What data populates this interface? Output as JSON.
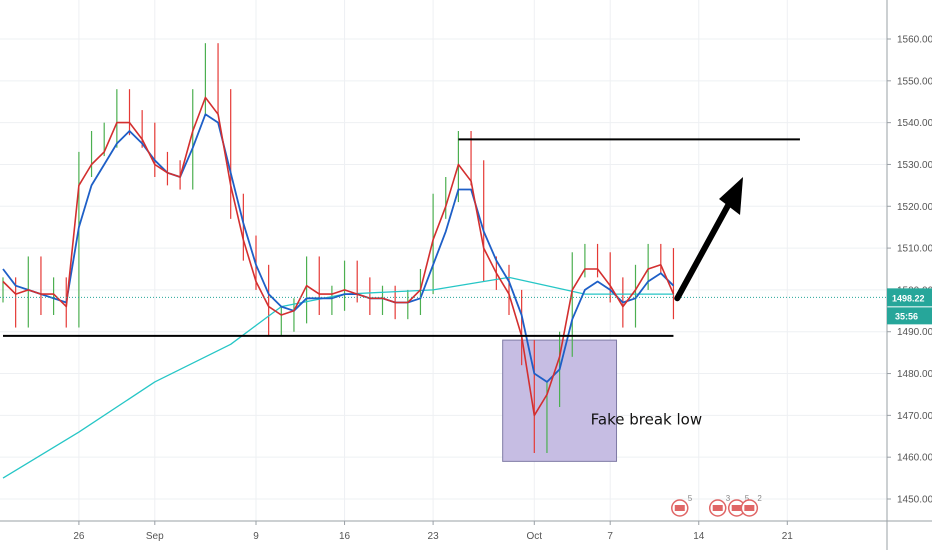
{
  "chart_data": {
    "type": "line",
    "y_scale": {
      "min": 1443,
      "max": 1565
    },
    "y_ticks": [
      1450,
      1460,
      1470,
      1480,
      1490,
      1500,
      1510,
      1520,
      1530,
      1540,
      1550,
      1560
    ],
    "y_tick_labels": [
      "1450.00",
      "1460.00",
      "1470.00",
      "1480.00",
      "1490.00",
      "1500.00",
      "1510.00",
      "1520.00",
      "1530.00",
      "1540.00",
      "1550.00",
      "1560.00"
    ],
    "x_ticks": [
      {
        "label": "26",
        "day": 6
      },
      {
        "label": "Sep",
        "day": 12
      },
      {
        "label": "9",
        "day": 20
      },
      {
        "label": "16",
        "day": 27
      },
      {
        "label": "23",
        "day": 34
      },
      {
        "label": "Oct",
        "day": 42
      },
      {
        "label": "7",
        "day": 48
      },
      {
        "label": "14",
        "day": 55
      },
      {
        "label": "21",
        "day": 62
      }
    ],
    "price_series": [
      [
        0,
        1500
      ],
      [
        1,
        1494
      ],
      [
        2,
        1505
      ],
      [
        3,
        1497
      ],
      [
        4,
        1500
      ],
      [
        5,
        1494
      ],
      [
        6,
        1530
      ],
      [
        7,
        1535
      ],
      [
        8,
        1537
      ],
      [
        9,
        1545
      ],
      [
        10,
        1540
      ],
      [
        11,
        1537
      ],
      [
        12,
        1530
      ],
      [
        13,
        1528
      ],
      [
        14,
        1527
      ],
      [
        15,
        1545
      ],
      [
        16,
        1556
      ],
      [
        17,
        1545
      ],
      [
        18,
        1520
      ],
      [
        19,
        1510
      ],
      [
        20,
        1503
      ],
      [
        21,
        1492
      ],
      [
        22,
        1493
      ],
      [
        23,
        1495
      ],
      [
        24,
        1505
      ],
      [
        25,
        1497
      ],
      [
        26,
        1498
      ],
      [
        27,
        1504
      ],
      [
        28,
        1500
      ],
      [
        29,
        1497
      ],
      [
        30,
        1498
      ],
      [
        31,
        1496
      ],
      [
        32,
        1497
      ],
      [
        33,
        1502
      ],
      [
        34,
        1520
      ],
      [
        35,
        1524
      ],
      [
        36,
        1535
      ],
      [
        37,
        1528
      ],
      [
        38,
        1505
      ],
      [
        39,
        1503
      ],
      [
        40,
        1497
      ],
      [
        41,
        1485
      ],
      [
        42,
        1464
      ],
      [
        43,
        1475
      ],
      [
        44,
        1487
      ],
      [
        45,
        1506
      ],
      [
        46,
        1508
      ],
      [
        47,
        1506
      ],
      [
        48,
        1500
      ],
      [
        49,
        1494
      ],
      [
        50,
        1503
      ],
      [
        51,
        1508
      ],
      [
        52,
        1507
      ],
      [
        53,
        1496
      ]
    ],
    "ema_fast": [
      [
        0,
        1502
      ],
      [
        1,
        1499
      ],
      [
        2,
        1500
      ],
      [
        3,
        1499
      ],
      [
        4,
        1499
      ],
      [
        5,
        1496
      ],
      [
        6,
        1525
      ],
      [
        7,
        1530
      ],
      [
        8,
        1533
      ],
      [
        9,
        1540
      ],
      [
        10,
        1540
      ],
      [
        11,
        1536
      ],
      [
        12,
        1530
      ],
      [
        13,
        1528
      ],
      [
        14,
        1527
      ],
      [
        15,
        1538
      ],
      [
        16,
        1546
      ],
      [
        17,
        1542
      ],
      [
        18,
        1525
      ],
      [
        19,
        1512
      ],
      [
        20,
        1502
      ],
      [
        21,
        1496
      ],
      [
        22,
        1494
      ],
      [
        23,
        1495
      ],
      [
        24,
        1501
      ],
      [
        25,
        1499
      ],
      [
        26,
        1499
      ],
      [
        27,
        1500
      ],
      [
        28,
        1499
      ],
      [
        29,
        1498
      ],
      [
        30,
        1498
      ],
      [
        31,
        1497
      ],
      [
        32,
        1497
      ],
      [
        33,
        1500
      ],
      [
        34,
        1512
      ],
      [
        35,
        1520
      ],
      [
        36,
        1530
      ],
      [
        37,
        1526
      ],
      [
        38,
        1510
      ],
      [
        39,
        1504
      ],
      [
        40,
        1499
      ],
      [
        41,
        1489
      ],
      [
        42,
        1470
      ],
      [
        43,
        1475
      ],
      [
        44,
        1484
      ],
      [
        45,
        1500
      ],
      [
        46,
        1505
      ],
      [
        47,
        1505
      ],
      [
        48,
        1501
      ],
      [
        49,
        1496
      ],
      [
        50,
        1500
      ],
      [
        51,
        1505
      ],
      [
        52,
        1506
      ],
      [
        53,
        1499
      ]
    ],
    "ema_mid": [
      [
        0,
        1505
      ],
      [
        1,
        1501
      ],
      [
        2,
        1500
      ],
      [
        3,
        1499
      ],
      [
        4,
        1498
      ],
      [
        5,
        1497
      ],
      [
        6,
        1515
      ],
      [
        7,
        1525
      ],
      [
        8,
        1530
      ],
      [
        9,
        1535
      ],
      [
        10,
        1538
      ],
      [
        11,
        1535
      ],
      [
        12,
        1531
      ],
      [
        13,
        1528
      ],
      [
        14,
        1527
      ],
      [
        15,
        1534
      ],
      [
        16,
        1542
      ],
      [
        17,
        1540
      ],
      [
        18,
        1528
      ],
      [
        19,
        1516
      ],
      [
        20,
        1506
      ],
      [
        21,
        1499
      ],
      [
        22,
        1496
      ],
      [
        23,
        1495
      ],
      [
        24,
        1498
      ],
      [
        25,
        1498
      ],
      [
        26,
        1498
      ],
      [
        27,
        1499
      ],
      [
        28,
        1499
      ],
      [
        29,
        1498
      ],
      [
        30,
        1498
      ],
      [
        31,
        1497
      ],
      [
        32,
        1497
      ],
      [
        33,
        1498
      ],
      [
        34,
        1506
      ],
      [
        35,
        1514
      ],
      [
        36,
        1524
      ],
      [
        37,
        1524
      ],
      [
        38,
        1514
      ],
      [
        39,
        1507
      ],
      [
        40,
        1502
      ],
      [
        41,
        1494
      ],
      [
        42,
        1480
      ],
      [
        43,
        1478
      ],
      [
        44,
        1481
      ],
      [
        45,
        1493
      ],
      [
        46,
        1500
      ],
      [
        47,
        1502
      ],
      [
        48,
        1500
      ],
      [
        49,
        1497
      ],
      [
        50,
        1498
      ],
      [
        51,
        1502
      ],
      [
        52,
        1504
      ],
      [
        53,
        1501
      ]
    ],
    "ema_slow": [
      [
        0,
        1455
      ],
      [
        6,
        1466
      ],
      [
        12,
        1478
      ],
      [
        18,
        1487
      ],
      [
        22,
        1496
      ],
      [
        27,
        1499
      ],
      [
        34,
        1500
      ],
      [
        38,
        1502
      ],
      [
        40,
        1503
      ],
      [
        43,
        1501
      ],
      [
        46,
        1499
      ],
      [
        49,
        1499
      ],
      [
        53,
        1499
      ]
    ],
    "current_price": {
      "value": 1498.22,
      "label": "1498.22",
      "countdown": "35:56"
    },
    "support_line": {
      "value": 1489,
      "from_day": 0,
      "to_day": 53
    },
    "resistance_line": {
      "value": 1536,
      "from_day": 36,
      "to_day": 63
    },
    "fake_break_box": {
      "from_day": 39.5,
      "to_day": 48.5,
      "y_top": 1488,
      "y_bottom": 1459,
      "label": "Fake break low"
    },
    "arrow": {
      "from_day": 53.3,
      "from_value": 1498,
      "to_day": 58.5,
      "to_value": 1527
    },
    "event_badges": [
      {
        "day": 53.5,
        "count": "5"
      },
      {
        "day": 56.5,
        "count": "3"
      },
      {
        "day": 58,
        "count": "5"
      },
      {
        "day": 59,
        "count": "2"
      }
    ]
  }
}
